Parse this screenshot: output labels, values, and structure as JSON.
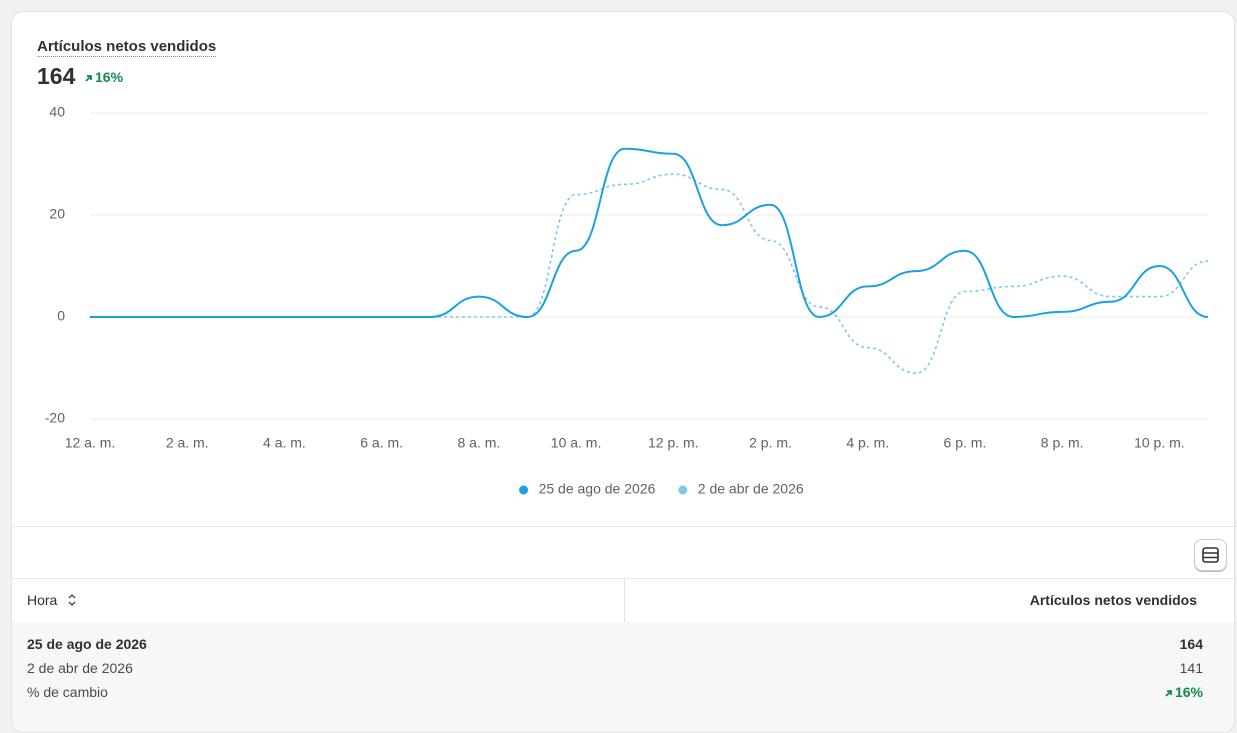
{
  "header": {
    "title": "Artículos netos vendidos",
    "value": 164,
    "change": "16%"
  },
  "chart_data": {
    "type": "line",
    "categories": [
      "12 a. m.",
      null,
      "2 a. m.",
      null,
      "4 a. m.",
      null,
      "6 a. m.",
      null,
      "8 a. m.",
      null,
      "10 a. m.",
      null,
      "12 p. m.",
      null,
      "2 p. m.",
      null,
      "4 p. m.",
      null,
      "6 p. m.",
      null,
      "8 p. m.",
      null,
      "10 p. m.",
      null
    ],
    "series": [
      {
        "name": "25 de ago de 2026",
        "color": "#1ba2dd",
        "values": [
          0,
          0,
          0,
          0,
          0,
          0,
          0,
          0,
          4,
          0,
          13,
          33,
          32,
          18,
          22,
          0,
          6,
          9,
          13,
          0,
          1,
          3,
          10,
          0
        ]
      },
      {
        "name": "2 de abr de 2026",
        "color": "#7fc8ea",
        "values": [
          0,
          0,
          0,
          0,
          0,
          0,
          0,
          0,
          0,
          0,
          24,
          26,
          28,
          25,
          15,
          2,
          -6,
          -11,
          5,
          6,
          8,
          4,
          4,
          11
        ]
      }
    ],
    "ylim": [
      -20,
      40
    ],
    "yticks": [
      -20,
      0,
      20,
      40
    ],
    "grid": true,
    "legend": "bottom"
  },
  "table": {
    "columns": [
      "Hora",
      "Artículos netos vendidos"
    ],
    "rows": [
      [
        "25 de ago de 2026",
        164
      ],
      [
        "2 de abr de 2026",
        141
      ],
      [
        "% de cambio",
        "16%"
      ]
    ]
  }
}
